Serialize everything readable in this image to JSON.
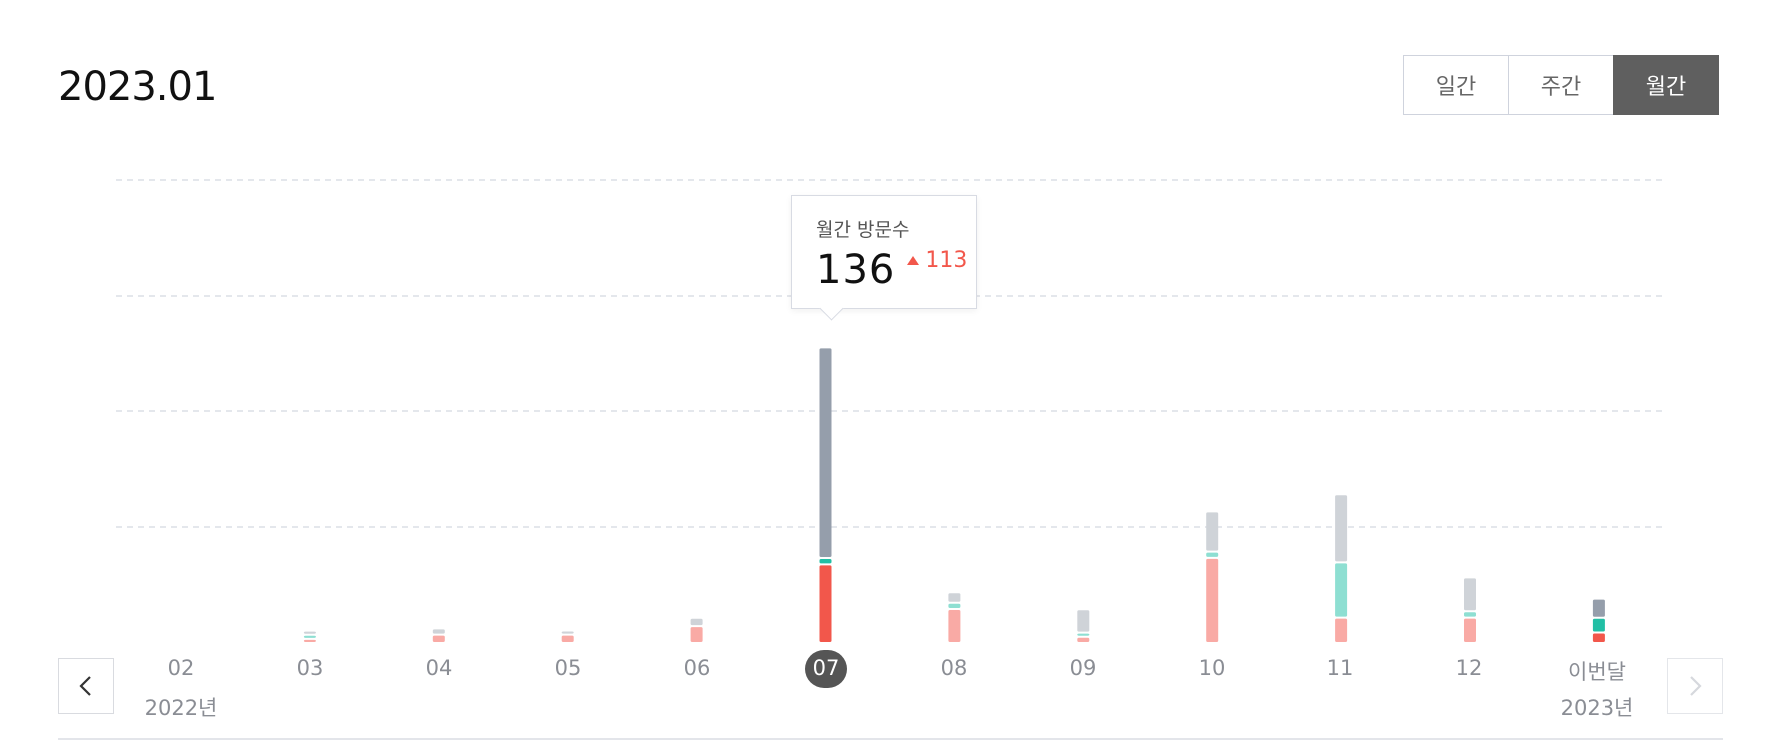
{
  "header": {
    "title": "2023.01",
    "period_tabs": [
      {
        "label": "일간",
        "active": false
      },
      {
        "label": "주간",
        "active": false
      },
      {
        "label": "월간",
        "active": true
      }
    ]
  },
  "tooltip": {
    "label": "월간 방문수",
    "value": "136",
    "change": "113",
    "change_direction": "up"
  },
  "x_axis": {
    "months": [
      "02",
      "03",
      "04",
      "05",
      "06",
      "07",
      "08",
      "09",
      "10",
      "11",
      "12",
      "이번달"
    ],
    "first_year": "2022년",
    "last_year": "2023년",
    "selected_index": 5
  },
  "navigation": {
    "prev_icon": "chevron-left-icon",
    "next_icon": "chevron-right-icon",
    "next_disabled": true
  },
  "colors": {
    "gray": "#959eab",
    "gray_light": "#cfd3d8",
    "teal": "#22bfa5",
    "teal_light": "#8edfd2",
    "red": "#f2574b",
    "red_light": "#f9aaa5",
    "accent_change": "#f2574b",
    "selected_pill": "#555555"
  },
  "chart_data": {
    "type": "bar",
    "stacked": true,
    "categories": [
      "02",
      "03",
      "04",
      "05",
      "06",
      "07",
      "08",
      "09",
      "10",
      "11",
      "12",
      "이번달"
    ],
    "series": [
      {
        "values": [
          0,
          1,
          3,
          3,
          7,
          36,
          15,
          2,
          39,
          11,
          11,
          4
        ],
        "color_key": "red"
      },
      {
        "values": [
          0,
          1,
          0,
          0,
          0,
          2,
          2,
          1,
          2,
          25,
          2,
          6
        ],
        "color_key": "teal"
      },
      {
        "values": [
          0,
          1,
          2,
          1,
          3,
          98,
          4,
          10,
          18,
          31,
          15,
          8
        ],
        "color_key": "gray"
      }
    ],
    "highlight": [
      false,
      false,
      false,
      false,
      false,
      true,
      false,
      false,
      false,
      false,
      false,
      true
    ],
    "grid": true,
    "grid_lines": 4
  }
}
